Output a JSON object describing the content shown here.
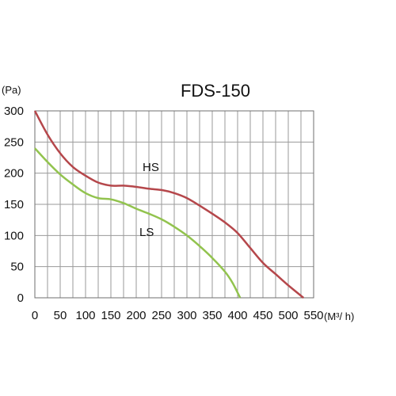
{
  "chart_data": {
    "type": "line",
    "title": "FDS-150",
    "ylabel": "(Pa)",
    "xlabel": "(M³/ h)",
    "xlim": [
      0,
      550
    ],
    "ylim": [
      0,
      300
    ],
    "x_ticks": [
      0,
      50,
      100,
      150,
      200,
      250,
      300,
      350,
      400,
      450,
      500,
      550
    ],
    "y_ticks": [
      0,
      50,
      100,
      150,
      200,
      250,
      300
    ],
    "grid": true,
    "series": [
      {
        "name": "HS",
        "color": "#b5474b",
        "points": [
          [
            0,
            300
          ],
          [
            25,
            262
          ],
          [
            50,
            232
          ],
          [
            75,
            210
          ],
          [
            100,
            196
          ],
          [
            125,
            185
          ],
          [
            150,
            180
          ],
          [
            175,
            180
          ],
          [
            200,
            178
          ],
          [
            225,
            175
          ],
          [
            250,
            173
          ],
          [
            275,
            168
          ],
          [
            300,
            160
          ],
          [
            325,
            148
          ],
          [
            350,
            135
          ],
          [
            375,
            121
          ],
          [
            400,
            104
          ],
          [
            425,
            80
          ],
          [
            450,
            56
          ],
          [
            475,
            38
          ],
          [
            500,
            20
          ],
          [
            530,
            0
          ]
        ]
      },
      {
        "name": "LS",
        "color": "#92c34e",
        "points": [
          [
            0,
            240
          ],
          [
            25,
            218
          ],
          [
            50,
            198
          ],
          [
            75,
            182
          ],
          [
            100,
            168
          ],
          [
            125,
            160
          ],
          [
            150,
            158
          ],
          [
            175,
            152
          ],
          [
            200,
            143
          ],
          [
            225,
            135
          ],
          [
            250,
            126
          ],
          [
            275,
            114
          ],
          [
            300,
            100
          ],
          [
            325,
            83
          ],
          [
            350,
            64
          ],
          [
            375,
            42
          ],
          [
            390,
            24
          ],
          [
            405,
            0
          ]
        ]
      }
    ]
  }
}
